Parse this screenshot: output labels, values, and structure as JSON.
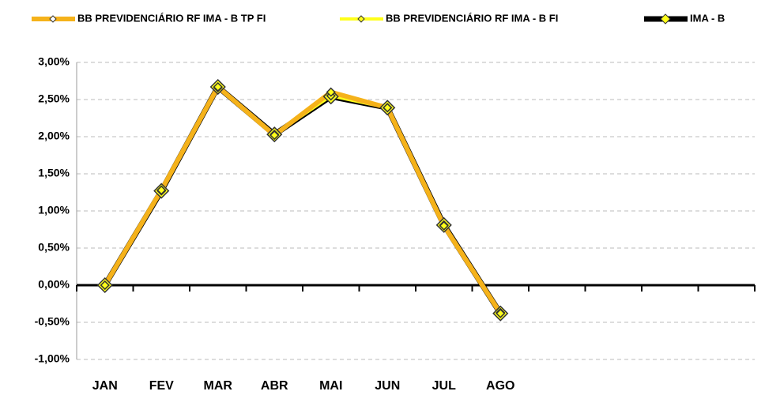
{
  "chart_data": {
    "type": "line",
    "categories": [
      "JAN",
      "FEV",
      "MAR",
      "ABR",
      "MAI",
      "JUN",
      "JUL",
      "AGO",
      null,
      null,
      null,
      null
    ],
    "series": [
      {
        "name": "BB PREVIDENCIÁRIO RF IMA - B TP FI",
        "color": "#f5b21a",
        "values": [
          0,
          1.28,
          2.67,
          2.02,
          2.6,
          2.39,
          0.8,
          -0.38,
          null,
          null,
          null,
          null
        ]
      },
      {
        "name": "BB PREVIDENCIÁRIO RF IMA - B FI",
        "color": "#ffff1a",
        "values": [
          0,
          1.27,
          2.66,
          2.03,
          2.55,
          2.39,
          0.81,
          -0.37,
          null,
          null,
          null,
          null
        ]
      },
      {
        "name": "IMA - B",
        "color": "#000000",
        "values": [
          0,
          1.27,
          2.67,
          2.03,
          2.54,
          2.39,
          0.81,
          -0.38,
          null,
          null,
          null,
          null
        ]
      }
    ],
    "ylim": [
      -1,
      3
    ],
    "yticks": [
      {
        "value": -1,
        "label": "-1,00%"
      },
      {
        "value": -0.5,
        "label": "-0,50%"
      },
      {
        "value": 0,
        "label": "0,00%"
      },
      {
        "value": 0.5,
        "label": "0,50%"
      },
      {
        "value": 1,
        "label": "1,00%"
      },
      {
        "value": 1.5,
        "label": "1,50%"
      },
      {
        "value": 2,
        "label": "2,00%"
      },
      {
        "value": 2.5,
        "label": "2,50%"
      },
      {
        "value": 3,
        "label": "3,00%"
      }
    ],
    "grid": true,
    "legend": "top"
  }
}
